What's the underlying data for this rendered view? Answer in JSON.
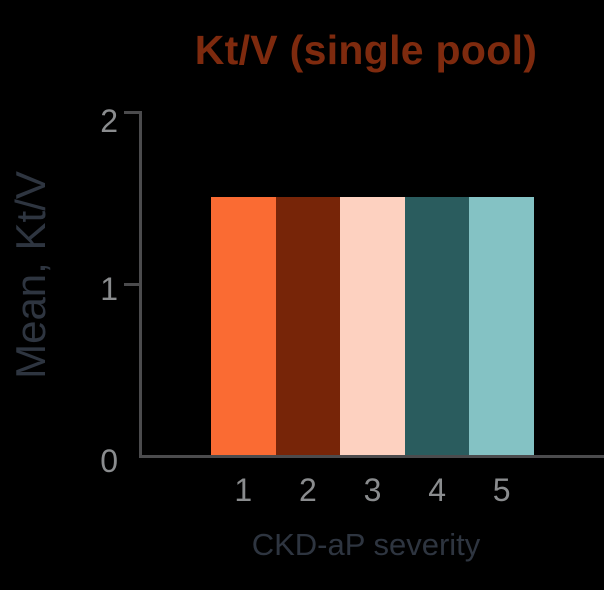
{
  "chart_data": {
    "type": "bar",
    "title": "Kt/V (single pool)",
    "categories": [
      "1",
      "2",
      "3",
      "4",
      "5"
    ],
    "values": [
      1.5,
      1.5,
      1.5,
      1.5,
      1.5
    ],
    "xlabel": "CKD-aP severity",
    "ylabel": "Mean, Kt/V",
    "ylim": [
      0,
      2
    ],
    "yticks": [
      0,
      1,
      2
    ],
    "bar_colors": [
      "#FA6B33",
      "#772508",
      "#FDD1C0",
      "#2A5C5E",
      "#84C2C4"
    ],
    "grid": false,
    "legend": false
  },
  "colors": {
    "background": "#000000",
    "title": "#7E2A0E",
    "axis_line": "#4B4B4D",
    "tick_label": "#8A8C8E",
    "axis_label": "#2E3540"
  }
}
